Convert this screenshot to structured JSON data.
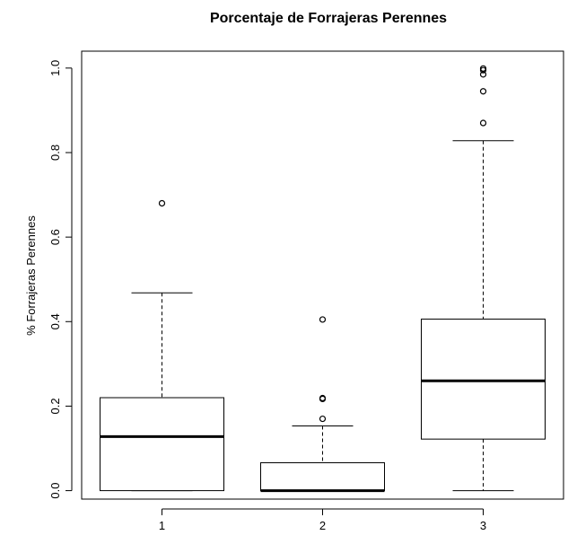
{
  "chart_data": {
    "type": "boxplot",
    "title": "Porcentaje de Forrajeras Perennes",
    "xlabel": "",
    "ylabel": "% Forrajeras Perennes",
    "categories": [
      "1",
      "2",
      "3"
    ],
    "ylim": [
      -0.02,
      1.04
    ],
    "yticks": [
      0.0,
      0.2,
      0.4,
      0.6,
      0.8,
      1.0
    ],
    "ytick_labels": [
      "0.0",
      "0.2",
      "0.4",
      "0.6",
      "0.8",
      "1.0"
    ],
    "grid": false,
    "boxes": [
      {
        "category": "1",
        "whisker_low": 0.0,
        "q1": 0.0,
        "median": 0.128,
        "q3": 0.22,
        "whisker_high": 0.468,
        "outliers": [
          0.68
        ]
      },
      {
        "category": "2",
        "whisker_low": 0.0,
        "q1": 0.0,
        "median": 0.0,
        "q3": 0.066,
        "whisker_high": 0.153,
        "outliers": [
          0.17,
          0.217,
          0.219,
          0.405
        ]
      },
      {
        "category": "3",
        "whisker_low": 0.0,
        "q1": 0.122,
        "median": 0.26,
        "q3": 0.406,
        "whisker_high": 0.828,
        "outliers": [
          0.87,
          0.945,
          0.985,
          0.995,
          0.999
        ]
      }
    ]
  }
}
